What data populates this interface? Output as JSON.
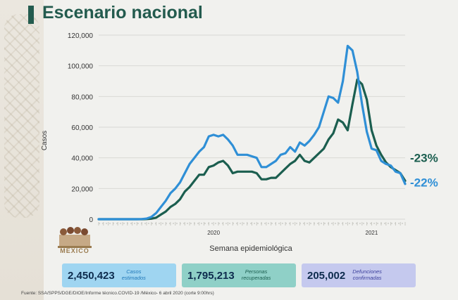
{
  "title": "Escenario nacional",
  "logo_text": "MÉXICO",
  "chart_data": {
    "type": "line",
    "ylabel": "Casos",
    "xlabel": "Semana epidemiológica",
    "ylim": [
      0,
      120000
    ],
    "yticks": [
      0,
      20000,
      40000,
      60000,
      80000,
      100000,
      120000
    ],
    "ytick_labels": [
      "0",
      "20,000",
      "40,000",
      "60,000",
      "80,000",
      "100,000",
      "120,000"
    ],
    "xlim": [
      1,
      65
    ],
    "x_year_labels": [
      {
        "x": 25,
        "label": "2020"
      },
      {
        "x": 58,
        "label": "2021"
      }
    ],
    "x": [
      1,
      2,
      3,
      4,
      5,
      6,
      7,
      8,
      9,
      10,
      11,
      12,
      13,
      14,
      15,
      16,
      17,
      18,
      19,
      20,
      21,
      22,
      23,
      24,
      25,
      26,
      27,
      28,
      29,
      30,
      31,
      32,
      33,
      34,
      35,
      36,
      37,
      38,
      39,
      40,
      41,
      42,
      43,
      44,
      45,
      46,
      47,
      48,
      49,
      50,
      51,
      52,
      53,
      54,
      55,
      56,
      57,
      58,
      59,
      60,
      61,
      62,
      63,
      64,
      65
    ],
    "series": [
      {
        "name": "",
        "color": "#2f8fd6",
        "values": [
          0,
          0,
          0,
          0,
          0,
          0,
          0,
          0,
          0,
          100,
          400,
          1500,
          4000,
          8000,
          12000,
          17000,
          20000,
          24000,
          30000,
          36000,
          40000,
          44000,
          47000,
          54000,
          55000,
          54000,
          55000,
          52000,
          48000,
          42000,
          42000,
          42000,
          41000,
          40000,
          34000,
          34000,
          36000,
          38000,
          42000,
          43000,
          47000,
          44000,
          50000,
          48000,
          51000,
          55000,
          60000,
          70000,
          80000,
          79000,
          76000,
          90000,
          113000,
          110000,
          96000,
          75000,
          57000,
          46000,
          45000,
          38000,
          36000,
          35000,
          31000,
          30000,
          23000
        ],
        "end_label": "-22%"
      },
      {
        "name": "",
        "color": "#1b5e4f",
        "values": [
          0,
          0,
          0,
          0,
          0,
          0,
          0,
          0,
          0,
          0,
          100,
          300,
          1000,
          3000,
          5000,
          8000,
          10000,
          13000,
          18000,
          21000,
          25000,
          29000,
          29000,
          34000,
          35000,
          37000,
          38000,
          35000,
          30000,
          31000,
          31000,
          31000,
          31000,
          30000,
          26000,
          26000,
          27000,
          27000,
          30000,
          33000,
          36000,
          38000,
          42000,
          38000,
          37000,
          40000,
          43000,
          46000,
          52000,
          56000,
          65000,
          63000,
          58000,
          75000,
          91000,
          88000,
          78000,
          58000,
          48000,
          42000,
          37000,
          34000,
          32000,
          30000,
          25000
        ],
        "end_label": "-23%"
      }
    ]
  },
  "stats": [
    {
      "value": "2,450,423",
      "desc_line1": "Casos",
      "desc_line2": "estimados",
      "bg": "#9fd5f1",
      "desc_color": "#1f77b8"
    },
    {
      "value": "1,795,213",
      "desc_line1": "Personas",
      "desc_line2": "recuperadas",
      "bg": "#8fd0c7",
      "desc_color": "#1b5e4f"
    },
    {
      "value": "205,002",
      "desc_line1": "Defunciones",
      "desc_line2": "confirmadas",
      "bg": "#c5c9ee",
      "desc_color": "#3b3f9b"
    }
  ],
  "footer": "Fuente: SSA/SPPS/DGE/DIOE/Informe técnico.COVID-19 /México- 6 abril 2020 (corte 9:00hrs)"
}
